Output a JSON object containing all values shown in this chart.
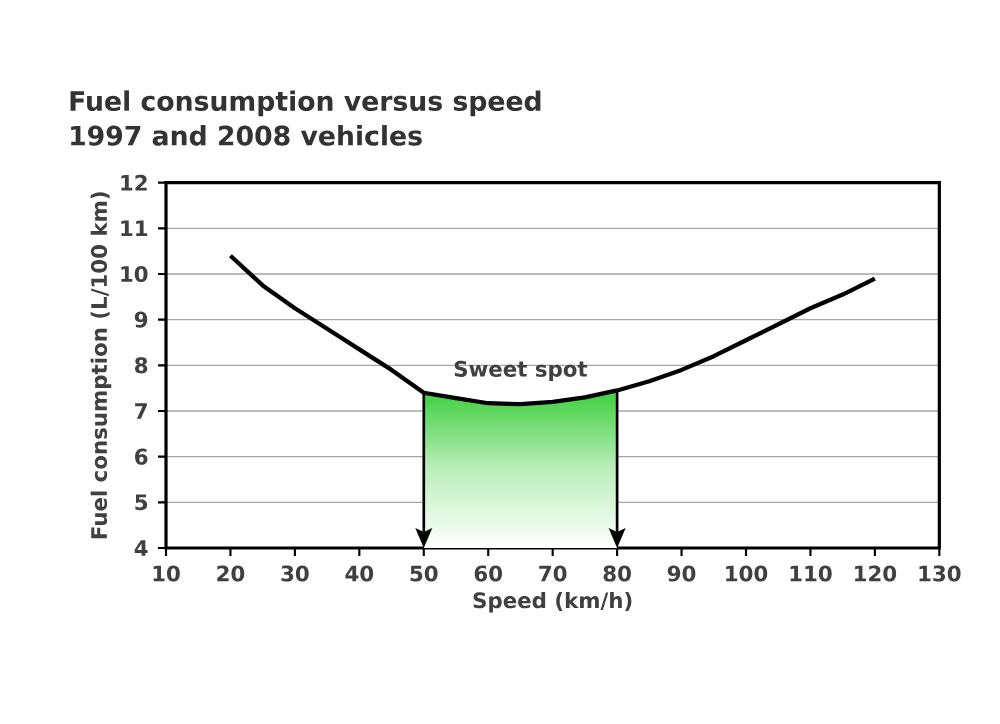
{
  "chart_data": {
    "type": "line",
    "title": "Fuel consumption versus speed",
    "subtitle": "1997 and 2008 vehicles",
    "xlabel": "Speed (km/h)",
    "ylabel": "Fuel consumption (L/100 km)",
    "series": [
      {
        "color": "#000000",
        "x": [
          20,
          25,
          30,
          35,
          40,
          45,
          50,
          55,
          60,
          65,
          70,
          75,
          80,
          85,
          90,
          95,
          100,
          105,
          110,
          115,
          120
        ],
        "values": [
          10.4,
          9.75,
          9.25,
          8.8,
          8.35,
          7.9,
          7.4,
          7.28,
          7.17,
          7.15,
          7.2,
          7.3,
          7.45,
          7.65,
          7.9,
          8.2,
          8.55,
          8.9,
          9.25,
          9.55,
          9.9
        ]
      }
    ],
    "bands": [
      {
        "axis": "x",
        "from": 50,
        "to": 80,
        "color": "#3ccf3c"
      }
    ],
    "ref_lines": [
      {
        "axis": "x",
        "value": 50,
        "color": "#000000"
      },
      {
        "axis": "x",
        "value": 80,
        "color": "#000000"
      }
    ],
    "annotations": [
      "Sweet spot"
    ],
    "xlim": [
      10,
      130
    ],
    "ylim": [
      4,
      12
    ],
    "xticks": [
      10,
      20,
      30,
      40,
      50,
      60,
      70,
      80,
      90,
      100,
      110,
      120,
      130
    ],
    "yticks": [
      4,
      5,
      6,
      7,
      8,
      9,
      10,
      11,
      12
    ],
    "grid": "y"
  }
}
